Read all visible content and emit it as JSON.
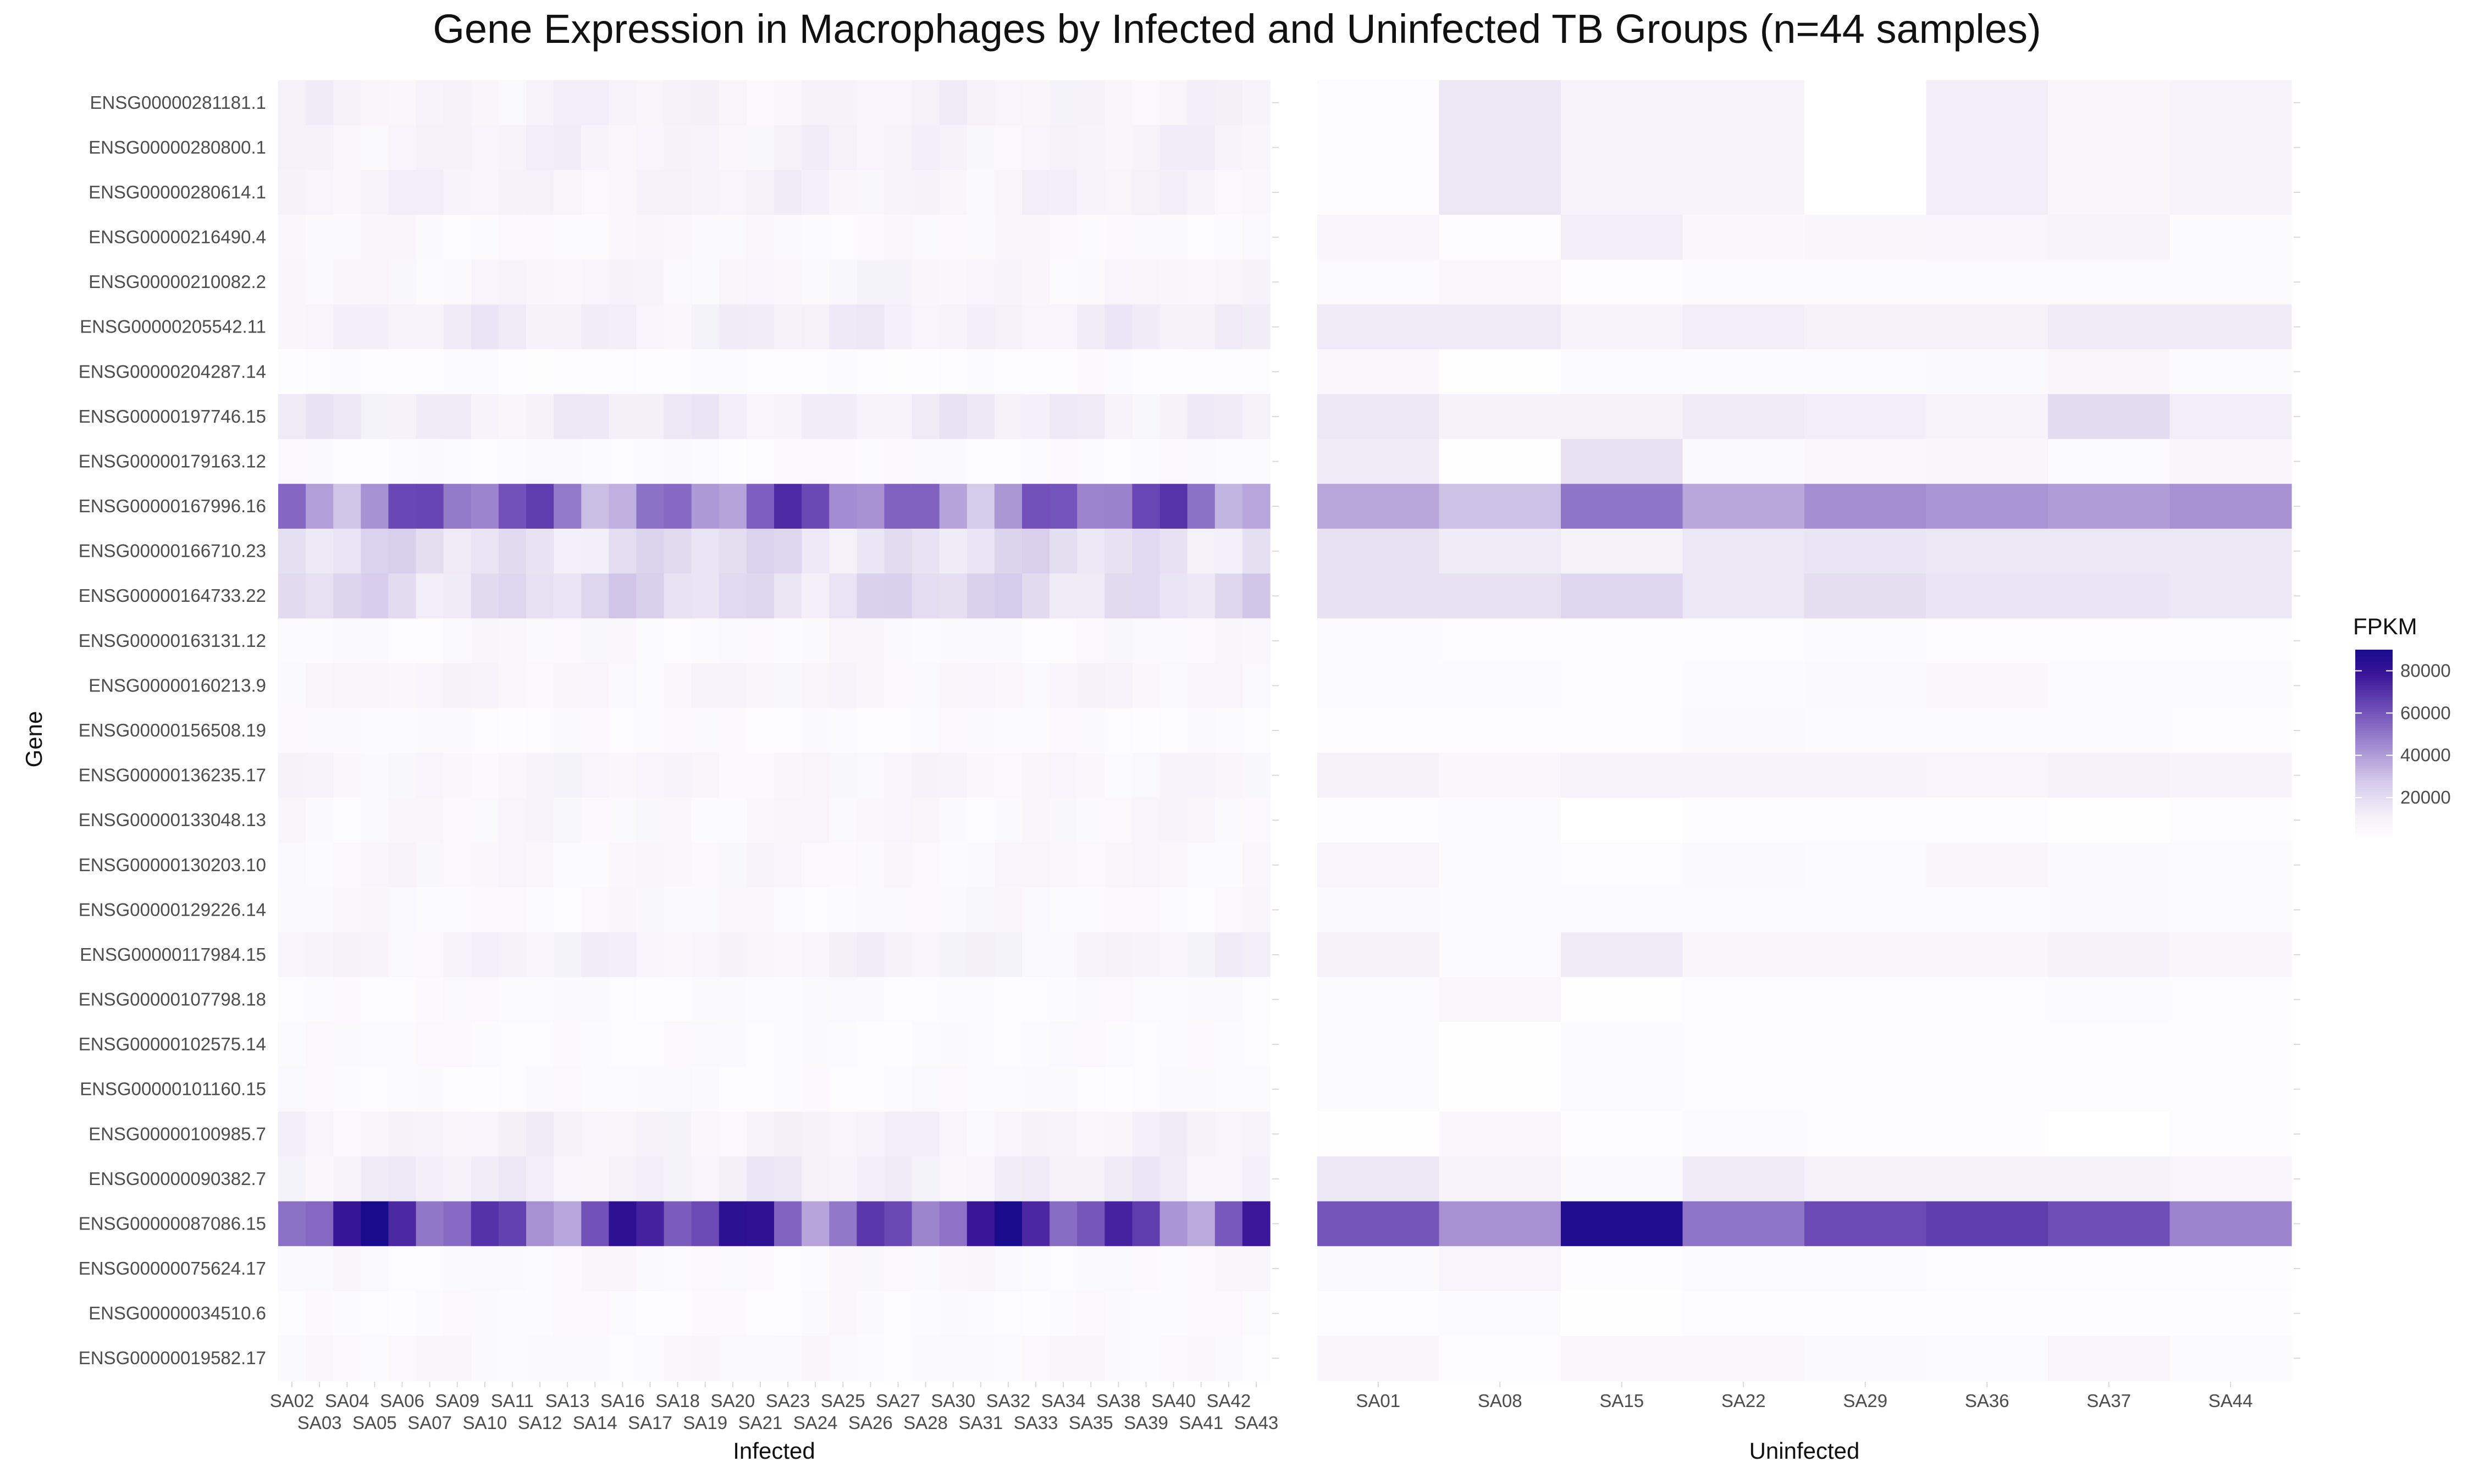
{
  "chart_data": {
    "type": "heatmap",
    "title": "Gene Expression in Macrophages by Infected and Uninfected TB Groups (n=44 samples)",
    "ylabel": "Gene",
    "legend": {
      "title": "FPKM",
      "ticks": [
        20000,
        40000,
        60000,
        80000
      ],
      "tick_labels": [
        "20000",
        "40000",
        "60000",
        "80000"
      ],
      "range": [
        0,
        90000
      ],
      "low_color": "#ffffff",
      "high_color": "#1a0a8c",
      "position": "right"
    },
    "genes": [
      "ENSG00000281181.1",
      "ENSG00000280800.1",
      "ENSG00000280614.1",
      "ENSG00000216490.4",
      "ENSG00000210082.2",
      "ENSG00000205542.11",
      "ENSG00000204287.14",
      "ENSG00000197746.15",
      "ENSG00000179163.12",
      "ENSG00000167996.16",
      "ENSG00000166710.23",
      "ENSG00000164733.22",
      "ENSG00000163131.12",
      "ENSG00000160213.9",
      "ENSG00000156508.19",
      "ENSG00000136235.17",
      "ENSG00000133048.13",
      "ENSG00000130203.10",
      "ENSG00000129226.14",
      "ENSG00000117984.15",
      "ENSG00000107798.18",
      "ENSG00000102575.14",
      "ENSG00000101160.15",
      "ENSG00000100985.7",
      "ENSG00000090382.7",
      "ENSG00000087086.15",
      "ENSG00000075624.17",
      "ENSG00000034510.6",
      "ENSG00000019582.17"
    ],
    "panels": [
      {
        "name": "Infected",
        "samples": [
          "SA02",
          "SA03",
          "SA04",
          "SA05",
          "SA06",
          "SA07",
          "SA09",
          "SA10",
          "SA11",
          "SA12",
          "SA13",
          "SA14",
          "SA16",
          "SA17",
          "SA18",
          "SA19",
          "SA20",
          "SA21",
          "SA23",
          "SA24",
          "SA25",
          "SA26",
          "SA27",
          "SA28",
          "SA30",
          "SA31",
          "SA32",
          "SA33",
          "SA34",
          "SA35",
          "SA38",
          "SA39",
          "SA40",
          "SA41",
          "SA42",
          "SA43"
        ],
        "row_base": [
          9000,
          9000,
          9000,
          5000,
          7000,
          11000,
          3000,
          12000,
          4000,
          50000,
          18000,
          20000,
          5000,
          7000,
          4000,
          7000,
          6000,
          6000,
          5000,
          9000,
          4000,
          4000,
          4000,
          9000,
          11000,
          63000,
          5000,
          4000,
          5000
        ]
      },
      {
        "name": "Uninfected",
        "samples": [
          "SA01",
          "SA08",
          "SA15",
          "SA22",
          "SA29",
          "SA36",
          "SA37",
          "SA44"
        ],
        "values": [
          [
            3000,
            15000,
            9000,
            9000,
            0,
            12000,
            7000,
            9000
          ],
          [
            3000,
            15000,
            9000,
            9000,
            0,
            12000,
            7000,
            9000
          ],
          [
            3000,
            15000,
            9000,
            9000,
            0,
            12000,
            7000,
            9000
          ],
          [
            8000,
            2000,
            12000,
            6000,
            7000,
            8000,
            9000,
            4000
          ],
          [
            4000,
            6000,
            2000,
            4000,
            4000,
            4000,
            4000,
            4000
          ],
          [
            14000,
            14000,
            9000,
            12000,
            11000,
            11000,
            13000,
            13000
          ],
          [
            6000,
            1000,
            4000,
            4000,
            4000,
            5000,
            7000,
            4000
          ],
          [
            15000,
            10000,
            10000,
            14000,
            12000,
            9000,
            20000,
            12000
          ],
          [
            14000,
            1000,
            18000,
            5000,
            6000,
            7000,
            4000,
            7000
          ],
          [
            37000,
            30000,
            51000,
            37000,
            44000,
            42000,
            40000,
            43000
          ],
          [
            18000,
            13000,
            10000,
            15000,
            16000,
            15000,
            15000,
            15000
          ],
          [
            18000,
            18000,
            22000,
            15000,
            19000,
            16000,
            16000,
            15000
          ],
          [
            4000,
            3000,
            3000,
            3000,
            4000,
            3000,
            3000,
            3000
          ],
          [
            4000,
            4000,
            2000,
            4000,
            5000,
            6000,
            4000,
            4000
          ],
          [
            3000,
            3000,
            3000,
            5000,
            4000,
            4000,
            4000,
            3000
          ],
          [
            10000,
            6000,
            9000,
            9000,
            9000,
            8000,
            11000,
            9000
          ],
          [
            2000,
            4000,
            0,
            3000,
            3000,
            2000,
            1000,
            3000
          ],
          [
            8000,
            4000,
            3000,
            5000,
            4000,
            7000,
            5000,
            4000
          ],
          [
            5000,
            4000,
            4000,
            4000,
            4000,
            4000,
            5000,
            4000
          ],
          [
            10000,
            4000,
            13000,
            7000,
            7000,
            7000,
            10000,
            7000
          ],
          [
            4000,
            6000,
            1000,
            3000,
            3000,
            3000,
            4000,
            3000
          ],
          [
            4000,
            1000,
            4000,
            3000,
            3000,
            3000,
            3000,
            3000
          ],
          [
            4000,
            1000,
            4000,
            3000,
            3000,
            3000,
            3000,
            3000
          ],
          [
            1000,
            6000,
            2000,
            4000,
            3000,
            2000,
            0,
            3000
          ],
          [
            15000,
            9000,
            5000,
            13000,
            11000,
            10000,
            10000,
            8000
          ],
          [
            60000,
            43000,
            88000,
            51000,
            63000,
            67000,
            62000,
            47000
          ],
          [
            5000,
            8000,
            2000,
            4000,
            4000,
            3000,
            3000,
            3000
          ],
          [
            2000,
            4000,
            1000,
            2000,
            2000,
            2000,
            2000,
            2000
          ],
          [
            7000,
            3000,
            6000,
            6000,
            5000,
            4000,
            8000,
            4000
          ]
        ]
      }
    ]
  }
}
